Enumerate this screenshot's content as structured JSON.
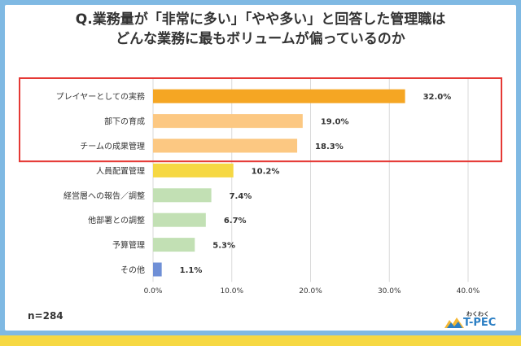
{
  "title_line1": "Q.業務量が「非常に多い」「やや多い」と回答した管理職は",
  "title_line2": "どんな業務に最もボリュームが偏っているのか",
  "sample_size": "n=284",
  "logo": {
    "small_text": "わくわく",
    "main_text": "T-PEC"
  },
  "colors": {
    "highlight_box": "#e53935",
    "bar_top": "#f5a623",
    "bar_high": "#fcc882",
    "bar_mid": "#f6d843",
    "bar_green": "#c2e0b4",
    "bar_other": "#6f8fd6"
  },
  "chart_data": {
    "type": "bar",
    "orientation": "horizontal",
    "categories": [
      "プレイヤーとしての実務",
      "部下の育成",
      "チームの成果管理",
      "人員配置管理",
      "経営層への報告／調整",
      "他部署との調整",
      "予算管理",
      "その他"
    ],
    "values": [
      32.0,
      19.0,
      18.3,
      10.2,
      7.4,
      6.7,
      5.3,
      1.1
    ],
    "value_labels": [
      "32.0%",
      "19.0%",
      "18.3%",
      "10.2%",
      "7.4%",
      "6.7%",
      "5.3%",
      "1.1%"
    ],
    "bar_colors": [
      "#f5a623",
      "#fcc882",
      "#fcc882",
      "#f6d843",
      "#c2e0b4",
      "#c2e0b4",
      "#c2e0b4",
      "#6f8fd6"
    ],
    "xlim": [
      0,
      40
    ],
    "ticks": [
      "0.0%",
      "10.0%",
      "20.0%",
      "30.0%",
      "40.0%"
    ],
    "highlighted_categories": [
      "プレイヤーとしての実務",
      "部下の育成",
      "チームの成果管理"
    ],
    "grid": true
  }
}
